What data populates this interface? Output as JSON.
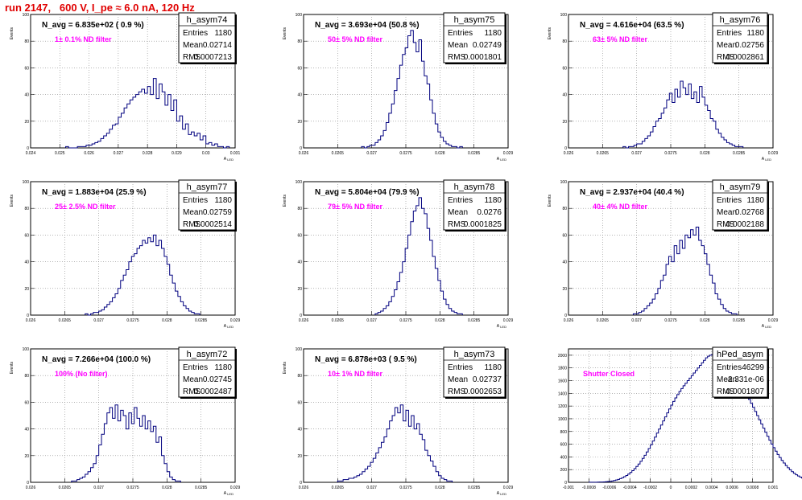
{
  "page_title": "run 2147,   600 V, I_pe ≈ 6.0 nA, 120 Hz",
  "colors": {
    "title": "#e00000",
    "annotation": "#ff00ff",
    "histogram": "#00007f",
    "grid": "#888888",
    "frame": "#000000"
  },
  "chart_data": [
    {
      "type": "bar",
      "name": "h_asym74",
      "headline": "N_avg = 6.835e+02 ( 0.9 %)",
      "annotation": "1± 0.1% ND filter",
      "stats": {
        "Entries": "1180",
        "Mean": "0.02714",
        "RMS": "0.0007213"
      },
      "ylabel": "Events",
      "xlabel": "A_LED",
      "xlim": [
        0.024,
        0.031
      ],
      "ylim": [
        0,
        100
      ],
      "xticks": [
        "0.024",
        "0.025",
        "0.026",
        "0.027",
        "0.028",
        "0.029",
        "0.03",
        "0.031"
      ],
      "yticks": [
        "0",
        "20",
        "40",
        "60",
        "80",
        "100"
      ],
      "bins": {
        "x0": 0.0252,
        "width": 0.0001,
        "values": [
          1,
          0,
          0,
          0,
          1,
          1,
          1,
          2,
          2,
          3,
          4,
          5,
          7,
          9,
          11,
          14,
          17,
          18,
          23,
          26,
          30,
          33,
          36,
          38,
          40,
          42,
          44,
          41,
          46,
          40,
          52,
          37,
          48,
          42,
          32,
          40,
          28,
          36,
          20,
          24,
          14,
          18,
          10,
          12,
          9,
          11,
          6,
          9,
          3,
          4,
          2,
          3,
          1,
          1,
          0,
          1
        ]
      }
    },
    {
      "type": "bar",
      "name": "h_asym75",
      "headline": "N_avg = 3.693e+04 (50.8 %)",
      "annotation": "50± 5% ND filter",
      "stats": {
        "Entries": "1180",
        "Mean": "0.02749",
        "RMS": "0.0001801"
      },
      "ylabel": "Events",
      "xlabel": "A_LED",
      "xlim": [
        0.026,
        0.029
      ],
      "ylim": [
        0,
        100
      ],
      "xticks": [
        "0.026",
        "0.0265",
        "0.027",
        "0.0275",
        "0.028",
        "0.0285",
        "0.029"
      ],
      "yticks": [
        "0",
        "20",
        "40",
        "60",
        "80",
        "100"
      ],
      "bins": {
        "x0": 0.02685,
        "width": 4e-05,
        "values": [
          1,
          0,
          1,
          2,
          2,
          4,
          6,
          9,
          13,
          19,
          26,
          33,
          43,
          52,
          62,
          70,
          75,
          84,
          88,
          79,
          72,
          81,
          65,
          54,
          48,
          36,
          26,
          18,
          12,
          8,
          5,
          3,
          2,
          1,
          1,
          0,
          1
        ]
      }
    },
    {
      "type": "bar",
      "name": "h_asym76",
      "headline": "N_avg = 4.616e+04 (63.5 %)",
      "annotation": "63± 5% ND filter",
      "stats": {
        "Entries": "1180",
        "Mean": "0.02756",
        "RMS": "0.0002861"
      },
      "ylabel": "Events",
      "xlabel": "A_LED",
      "xlim": [
        0.026,
        0.029
      ],
      "ylim": [
        0,
        100
      ],
      "xticks": [
        "0.026",
        "0.0265",
        "0.027",
        "0.0275",
        "0.028",
        "0.0285",
        "0.029"
      ],
      "yticks": [
        "0",
        "20",
        "40",
        "60",
        "80",
        "100"
      ],
      "bins": {
        "x0": 0.0268,
        "width": 4e-05,
        "values": [
          1,
          0,
          1,
          1,
          2,
          3,
          3,
          5,
          7,
          9,
          12,
          16,
          20,
          22,
          26,
          30,
          36,
          41,
          34,
          44,
          38,
          50,
          45,
          40,
          48,
          37,
          42,
          34,
          46,
          38,
          32,
          28,
          22,
          20,
          14,
          11,
          8,
          6,
          4,
          3,
          2,
          1,
          1,
          1
        ]
      }
    },
    {
      "type": "bar",
      "name": "h_asym77",
      "headline": "N_avg = 1.883e+04 (25.9 %)",
      "annotation": "25± 2.5% ND filter",
      "stats": {
        "Entries": "1180",
        "Mean": "0.02759",
        "RMS": "0.0002514"
      },
      "ylabel": "Events",
      "xlabel": "A_LED",
      "xlim": [
        0.026,
        0.029
      ],
      "ylim": [
        0,
        100
      ],
      "xticks": [
        "0.026",
        "0.0265",
        "0.027",
        "0.0275",
        "0.028",
        "0.0285",
        "0.029"
      ],
      "yticks": [
        "0",
        "20",
        "40",
        "60",
        "80",
        "100"
      ],
      "bins": {
        "x0": 0.0268,
        "width": 4e-05,
        "values": [
          1,
          0,
          1,
          2,
          2,
          3,
          4,
          6,
          8,
          10,
          13,
          16,
          20,
          26,
          30,
          34,
          40,
          44,
          46,
          50,
          52,
          56,
          54,
          58,
          55,
          60,
          52,
          56,
          50,
          44,
          38,
          30,
          24,
          18,
          14,
          10,
          7,
          5,
          3,
          2,
          1,
          1
        ]
      }
    },
    {
      "type": "bar",
      "name": "h_asym78",
      "headline": "N_avg = 5.804e+04 (79.9 %)",
      "annotation": "79± 5% ND filter",
      "stats": {
        "Entries": "1180",
        "Mean": "0.0276",
        "RMS": "0.0001825"
      },
      "ylabel": "Events",
      "xlabel": "A_LED",
      "xlim": [
        0.026,
        0.029
      ],
      "ylim": [
        0,
        100
      ],
      "xticks": [
        "0.026",
        "0.0265",
        "0.027",
        "0.0275",
        "0.028",
        "0.0285",
        "0.029"
      ],
      "yticks": [
        "0",
        "20",
        "40",
        "60",
        "80",
        "100"
      ],
      "bins": {
        "x0": 0.02705,
        "width": 4e-05,
        "values": [
          1,
          2,
          3,
          5,
          7,
          10,
          14,
          19,
          25,
          32,
          40,
          50,
          60,
          70,
          78,
          82,
          88,
          80,
          76,
          65,
          56,
          44,
          35,
          26,
          18,
          12,
          8,
          5,
          3,
          2,
          1,
          1
        ]
      }
    },
    {
      "type": "bar",
      "name": "h_asym79",
      "headline": "N_avg = 2.937e+04 (40.4 %)",
      "annotation": "40± 4% ND filter",
      "stats": {
        "Entries": "1180",
        "Mean": "0.02768",
        "RMS": "0.0002188"
      },
      "ylabel": "Events",
      "xlabel": "A_LED",
      "xlim": [
        0.026,
        0.029
      ],
      "ylim": [
        0,
        100
      ],
      "xticks": [
        "0.026",
        "0.0265",
        "0.027",
        "0.0275",
        "0.028",
        "0.0285",
        "0.029"
      ],
      "yticks": [
        "0",
        "20",
        "40",
        "60",
        "80",
        "100"
      ],
      "bins": {
        "x0": 0.02695,
        "width": 4e-05,
        "values": [
          1,
          1,
          2,
          3,
          5,
          7,
          9,
          12,
          16,
          20,
          26,
          30,
          38,
          44,
          40,
          52,
          46,
          56,
          50,
          60,
          58,
          64,
          60,
          66,
          56,
          52,
          46,
          38,
          30,
          24,
          16,
          12,
          8,
          5,
          3,
          2,
          1,
          1
        ]
      }
    },
    {
      "type": "bar",
      "name": "h_asym72",
      "headline": "N_avg = 7.266e+04 (100.0 %)",
      "annotation": "100% (No filter)",
      "stats": {
        "Entries": "1180",
        "Mean": "0.02745",
        "RMS": "0.0002487"
      },
      "ylabel": "Events",
      "xlabel": "A_LED",
      "xlim": [
        0.026,
        0.029
      ],
      "ylim": [
        0,
        100
      ],
      "xticks": [
        "0.026",
        "0.0265",
        "0.027",
        "0.0275",
        "0.028",
        "0.0285",
        "0.029"
      ],
      "yticks": [
        "0",
        "20",
        "40",
        "60",
        "80",
        "100"
      ],
      "bins": {
        "x0": 0.0266,
        "width": 4e-05,
        "values": [
          1,
          1,
          2,
          3,
          4,
          6,
          8,
          11,
          14,
          20,
          28,
          36,
          44,
          52,
          56,
          48,
          58,
          46,
          54,
          50,
          40,
          52,
          44,
          56,
          48,
          42,
          50,
          40,
          46,
          38,
          42,
          30,
          34,
          20,
          14,
          8,
          4,
          2,
          1,
          1
        ]
      }
    },
    {
      "type": "bar",
      "name": "h_asym73",
      "headline": "N_avg = 6.878e+03 ( 9.5 %)",
      "annotation": "10± 1% ND filter",
      "stats": {
        "Entries": "1180",
        "Mean": "0.02737",
        "RMS": "0.0002653"
      },
      "ylabel": "Events",
      "xlabel": "A_LED",
      "xlim": [
        0.026,
        0.029
      ],
      "ylim": [
        0,
        100
      ],
      "xticks": [
        "0.026",
        "0.0265",
        "0.027",
        "0.0275",
        "0.028",
        "0.0285",
        "0.029"
      ],
      "yticks": [
        "0",
        "20",
        "40",
        "60",
        "80",
        "100"
      ],
      "bins": {
        "x0": 0.0265,
        "width": 4e-05,
        "values": [
          1,
          1,
          2,
          2,
          3,
          3,
          4,
          5,
          6,
          8,
          10,
          12,
          15,
          18,
          22,
          26,
          30,
          34,
          40,
          46,
          50,
          56,
          52,
          58,
          46,
          54,
          42,
          50,
          40,
          44,
          36,
          32,
          24,
          20,
          16,
          12,
          8,
          5,
          3,
          2,
          1,
          1
        ]
      }
    },
    {
      "type": "bar",
      "name": "hPed_asym",
      "headline": "",
      "annotation": "Shutter Closed",
      "stats": {
        "Entries": "46299",
        "Mean": "-2.331e-06",
        "RMS": "0.0001807"
      },
      "ylabel": "",
      "xlabel": "",
      "xlim": [
        -0.001,
        0.001
      ],
      "ylim": [
        0,
        2100
      ],
      "xticks": [
        "-0.001",
        "-0.0008",
        "-0.0006",
        "-0.0004",
        "-0.0002",
        "0",
        "0.0002",
        "0.0004",
        "0.0006",
        "0.0008",
        "0.001"
      ],
      "yticks": [
        "0",
        "200",
        "400",
        "600",
        "800",
        "1000",
        "1200",
        "1400",
        "1600",
        "1800",
        "2000"
      ],
      "bins": {
        "x0": -0.0008,
        "width": 2e-05,
        "values": [
          1,
          1,
          2,
          2,
          3,
          4,
          5,
          7,
          9,
          12,
          16,
          21,
          28,
          36,
          46,
          58,
          72,
          89,
          108,
          130,
          155,
          183,
          215,
          250,
          288,
          330,
          376,
          425,
          477,
          532,
          590,
          650,
          712,
          775,
          838,
          902,
          966,
          1030,
          1093,
          1155,
          1215,
          1273,
          1328,
          1380,
          1430,
          1475,
          1520,
          1560,
          1600,
          1640,
          1680,
          1720,
          1760,
          1800,
          1840,
          1880,
          1920,
          1960,
          1985,
          2000,
          2010,
          1995,
          1975,
          1950,
          1920,
          1890,
          1850,
          1810,
          1770,
          1730,
          1690,
          1650,
          1610,
          1565,
          1520,
          1470,
          1420,
          1365,
          1305,
          1243,
          1180,
          1115,
          1050,
          984,
          918,
          852,
          788,
          724,
          662,
          602,
          545,
          490,
          438,
          390,
          345,
          303,
          264,
          229,
          197,
          168,
          142,
          119,
          99,
          82,
          67,
          54,
          43,
          34,
          27,
          21,
          16,
          12,
          9,
          7,
          5,
          4,
          3,
          2,
          1,
          1
        ]
      }
    }
  ]
}
